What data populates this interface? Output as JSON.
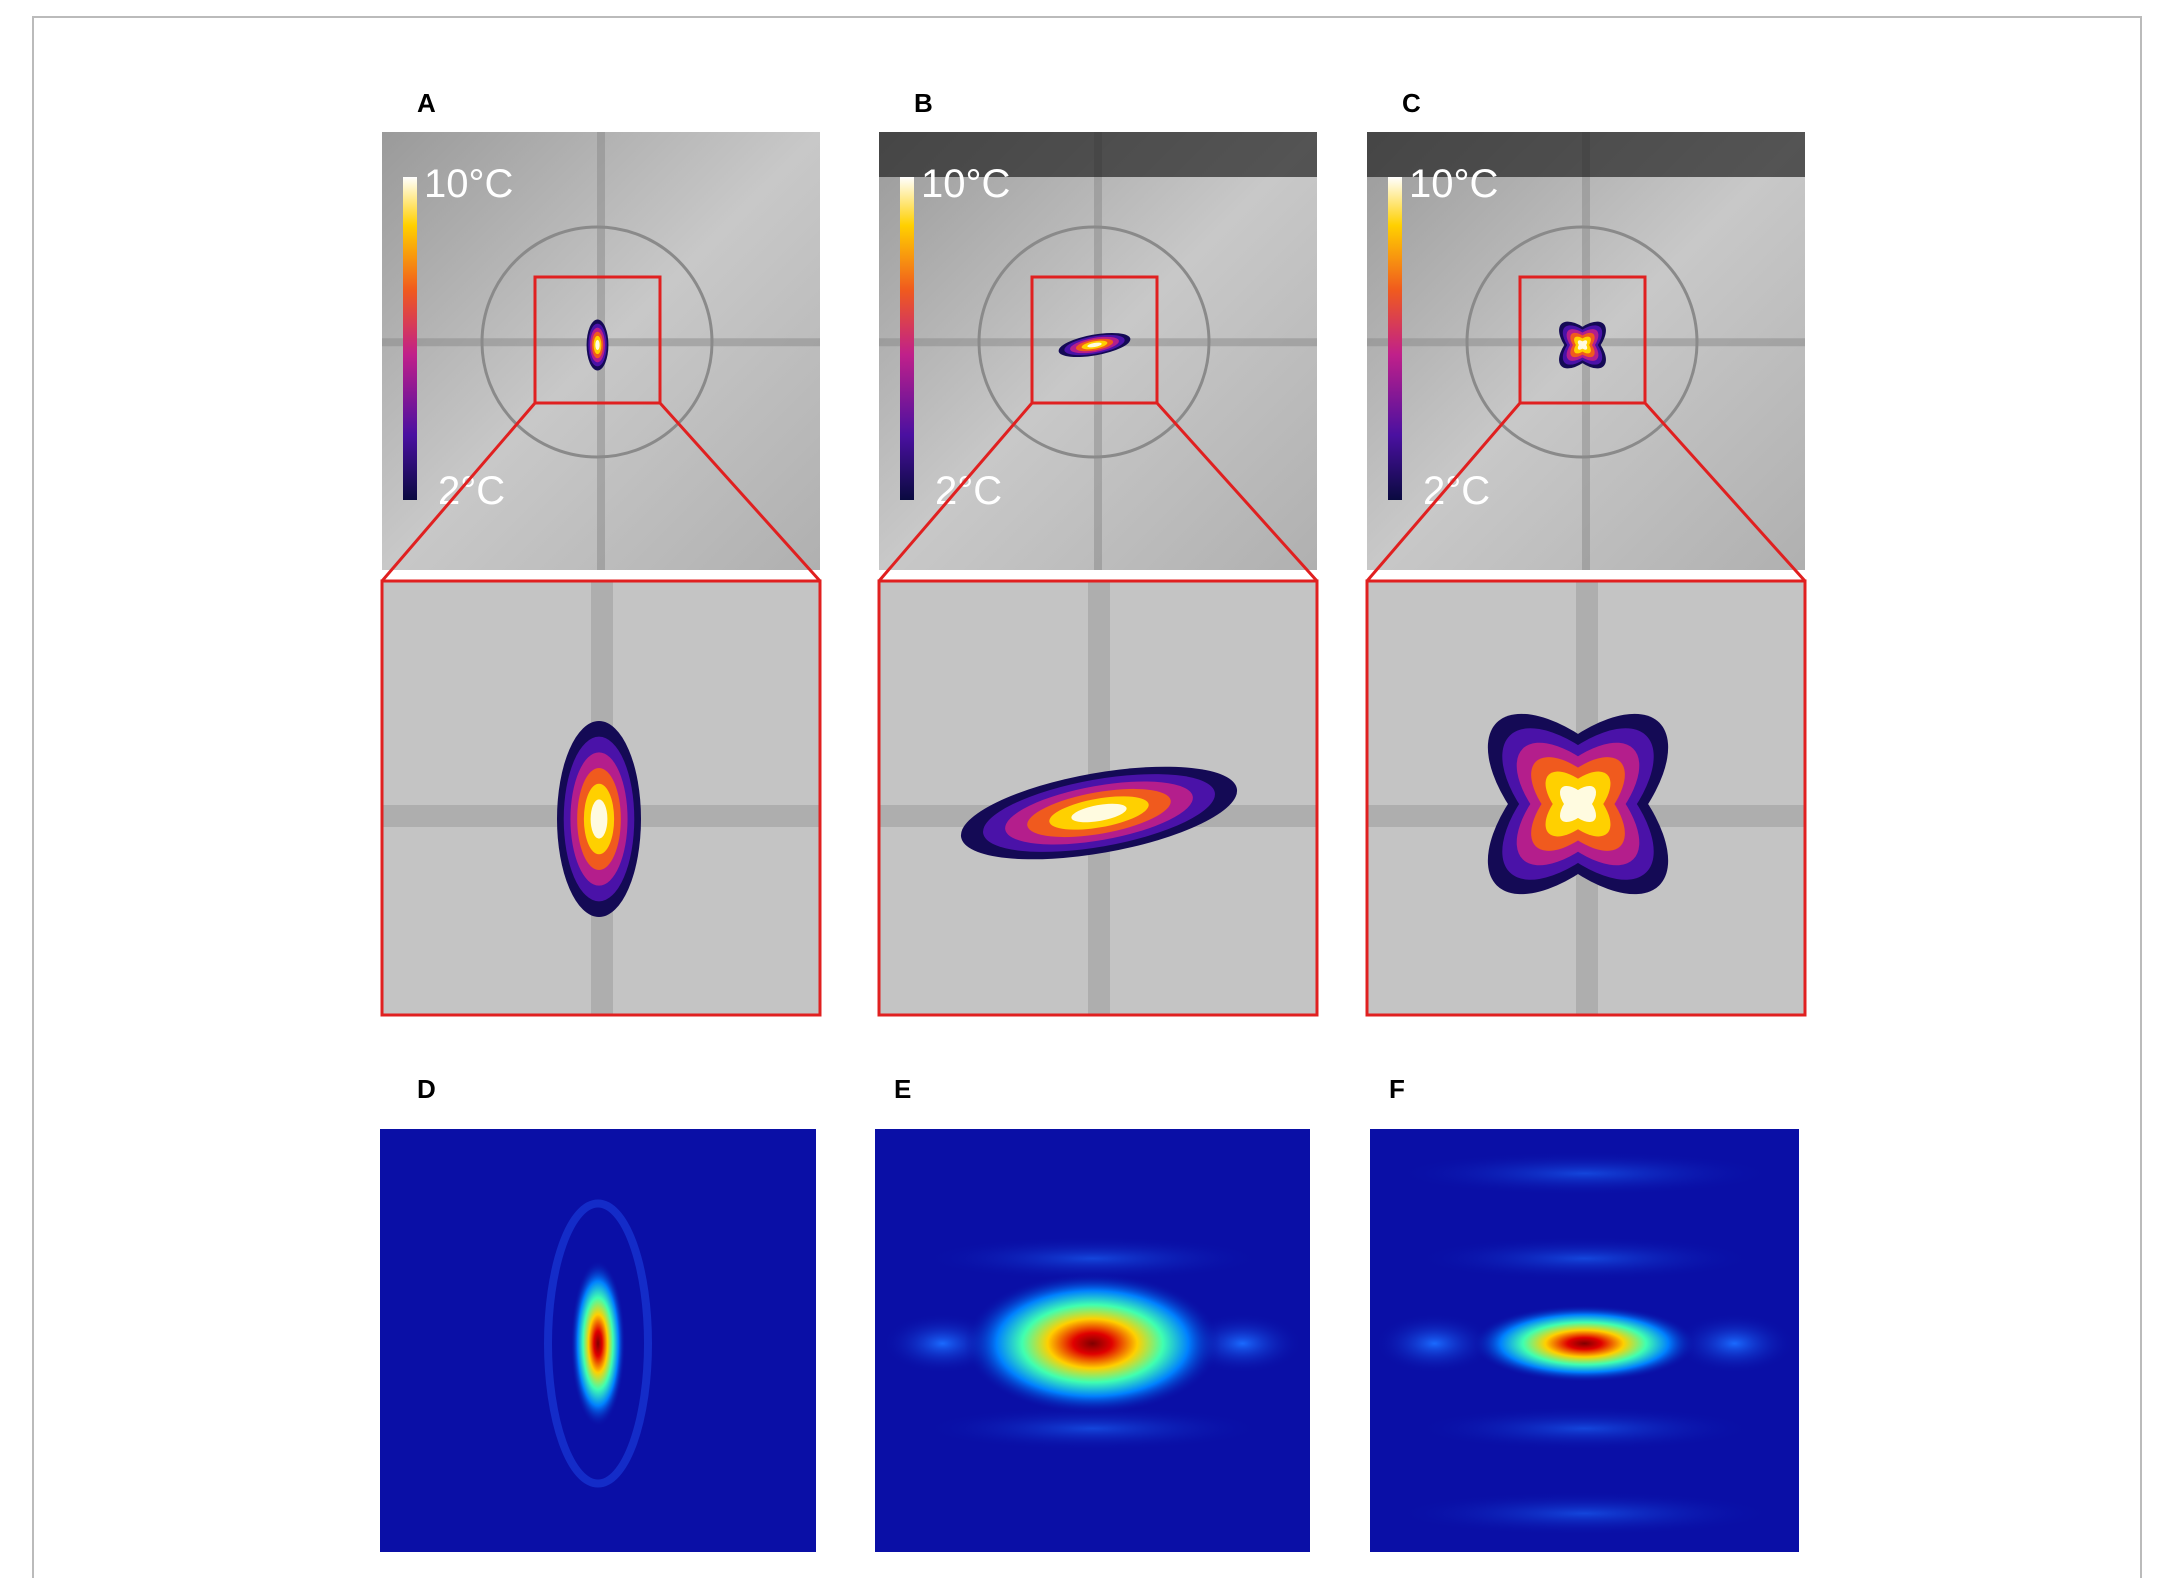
{
  "panels": [
    {
      "label": "A",
      "colorbar": {
        "max_label": "10°C",
        "min_label": "2°C"
      }
    },
    {
      "label": "B",
      "colorbar": {
        "max_label": "10°C",
        "min_label": "2°C"
      }
    },
    {
      "label": "C",
      "colorbar": {
        "max_label": "10°C",
        "min_label": "2°C"
      }
    }
  ],
  "maps": [
    {
      "label": "D"
    },
    {
      "label": "E"
    },
    {
      "label": "F"
    }
  ]
}
